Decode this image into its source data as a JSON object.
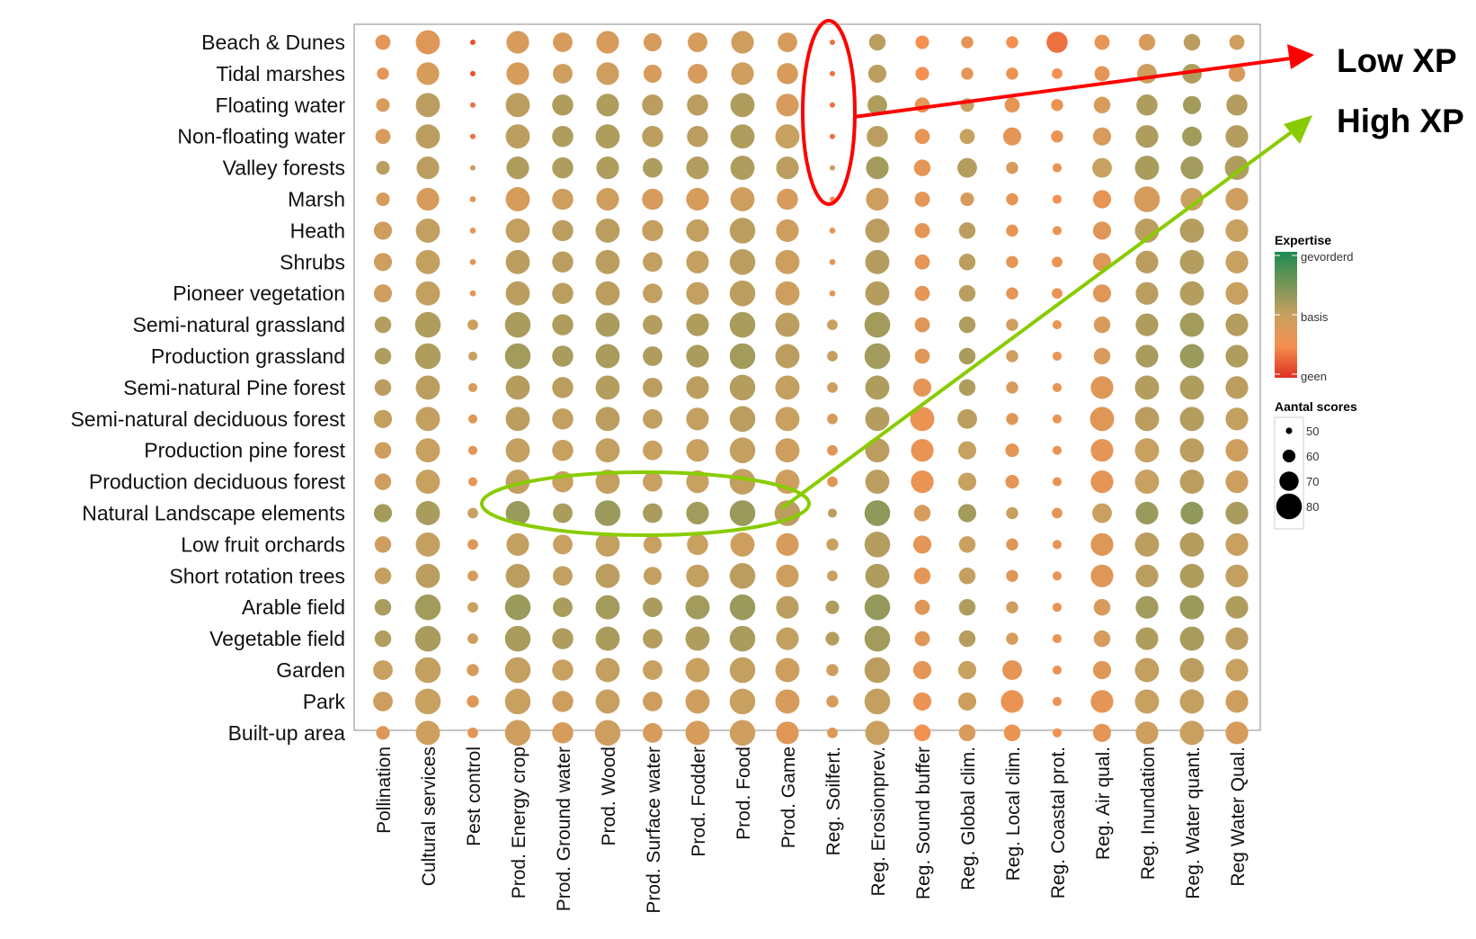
{
  "chart_data": {
    "type": "scatter",
    "title": "",
    "xlabel": "",
    "ylabel": "",
    "rows": [
      "Beach & Dunes",
      "Tidal marshes",
      "Floating water",
      "Non-floating water",
      "Valley forests",
      "Marsh",
      "Heath",
      "Shrubs",
      "Pioneer vegetation",
      "Semi-natural grassland",
      "Production grassland",
      "Semi-natural Pine forest",
      "Semi-natural deciduous forest",
      "Production pine forest",
      "Production deciduous forest",
      "Natural Landscape elements",
      "Low fruit orchards",
      "Short rotation trees",
      "Arable field",
      "Vegetable field",
      "Garden",
      "Park",
      "Built-up area"
    ],
    "columns": [
      "Pollination",
      "Cultural services",
      "Pest control",
      "Prod. Energy crop",
      "Prod. Ground water",
      "Prod. Wood",
      "Prod. Surface water",
      "Prod. Fodder",
      "Prod. Food",
      "Prod. Game",
      "Reg. Soilfert.",
      "Reg. Erosionprev.",
      "Reg. Sound buffer",
      "Reg. Global clim.",
      "Reg. Local clim.",
      "Reg. Coastal prot.",
      "Reg. Air qual.",
      "Reg. Inundation",
      "Reg. Water quant.",
      "Reg Water Qual."
    ],
    "size": [
      [
        60,
        72,
        44,
        70,
        66,
        70,
        64,
        66,
        70,
        66,
        44,
        62,
        58,
        56,
        56,
        68,
        60,
        62,
        62,
        60
      ],
      [
        56,
        70,
        44,
        70,
        66,
        70,
        64,
        66,
        70,
        68,
        44,
        64,
        58,
        56,
        56,
        54,
        60,
        66,
        66,
        62
      ],
      [
        58,
        72,
        44,
        72,
        68,
        70,
        68,
        68,
        72,
        70,
        44,
        66,
        60,
        58,
        60,
        56,
        62,
        68,
        64,
        68
      ],
      [
        60,
        72,
        44,
        72,
        68,
        72,
        68,
        68,
        72,
        72,
        44,
        68,
        60,
        60,
        64,
        56,
        64,
        70,
        66,
        70
      ],
      [
        58,
        70,
        46,
        70,
        68,
        70,
        66,
        70,
        72,
        70,
        46,
        70,
        62,
        66,
        56,
        52,
        66,
        72,
        70,
        72
      ],
      [
        58,
        70,
        48,
        72,
        68,
        70,
        68,
        70,
        72,
        68,
        46,
        70,
        60,
        58,
        56,
        52,
        64,
        74,
        70,
        70
      ],
      [
        64,
        72,
        48,
        72,
        68,
        72,
        68,
        70,
        74,
        70,
        48,
        72,
        60,
        62,
        56,
        52,
        64,
        72,
        72,
        70
      ],
      [
        64,
        72,
        48,
        72,
        68,
        72,
        66,
        70,
        74,
        72,
        48,
        72,
        60,
        62,
        56,
        54,
        64,
        70,
        72,
        70
      ],
      [
        64,
        72,
        48,
        72,
        68,
        72,
        66,
        70,
        74,
        72,
        48,
        72,
        60,
        62,
        56,
        54,
        64,
        70,
        72,
        70
      ],
      [
        62,
        74,
        54,
        74,
        68,
        72,
        66,
        70,
        74,
        72,
        54,
        74,
        60,
        62,
        56,
        52,
        62,
        70,
        72,
        70
      ],
      [
        62,
        74,
        52,
        74,
        68,
        72,
        66,
        70,
        74,
        72,
        54,
        74,
        60,
        62,
        56,
        52,
        62,
        70,
        72,
        70
      ],
      [
        62,
        72,
        52,
        72,
        68,
        72,
        66,
        70,
        74,
        72,
        54,
        72,
        64,
        62,
        56,
        52,
        70,
        72,
        72,
        70
      ],
      [
        64,
        72,
        52,
        72,
        68,
        72,
        66,
        70,
        74,
        72,
        54,
        72,
        72,
        66,
        56,
        52,
        72,
        72,
        72,
        70
      ],
      [
        62,
        72,
        52,
        72,
        68,
        72,
        66,
        70,
        74,
        72,
        54,
        72,
        70,
        64,
        58,
        52,
        70,
        72,
        72,
        70
      ],
      [
        62,
        72,
        52,
        72,
        68,
        72,
        66,
        70,
        74,
        72,
        54,
        72,
        70,
        64,
        58,
        52,
        70,
        72,
        72,
        70
      ],
      [
        64,
        72,
        54,
        72,
        66,
        74,
        66,
        70,
        74,
        74,
        52,
        74,
        62,
        64,
        56,
        54,
        66,
        70,
        70,
        70
      ],
      [
        62,
        72,
        54,
        70,
        66,
        72,
        64,
        68,
        72,
        70,
        56,
        74,
        64,
        62,
        56,
        52,
        70,
        72,
        72,
        70
      ],
      [
        62,
        72,
        54,
        72,
        66,
        72,
        64,
        70,
        74,
        70,
        54,
        72,
        62,
        62,
        56,
        52,
        70,
        70,
        72,
        70
      ],
      [
        62,
        74,
        54,
        74,
        66,
        72,
        66,
        72,
        74,
        70,
        58,
        74,
        60,
        62,
        56,
        52,
        62,
        70,
        72,
        70
      ],
      [
        62,
        74,
        54,
        74,
        68,
        72,
        66,
        72,
        74,
        70,
        58,
        74,
        60,
        62,
        56,
        52,
        62,
        70,
        72,
        70
      ],
      [
        66,
        74,
        56,
        74,
        68,
        72,
        66,
        72,
        74,
        72,
        56,
        74,
        64,
        64,
        66,
        52,
        64,
        72,
        72,
        70
      ],
      [
        66,
        74,
        56,
        74,
        68,
        72,
        66,
        72,
        74,
        72,
        56,
        74,
        64,
        64,
        70,
        52,
        70,
        72,
        72,
        70
      ],
      [
        58,
        72,
        54,
        74,
        68,
        74,
        66,
        72,
        74,
        70,
        54,
        72,
        62,
        62,
        62,
        52,
        64,
        70,
        72,
        70
      ]
    ],
    "expertise": [
      [
        0.4,
        0.42,
        0.25,
        0.45,
        0.45,
        0.45,
        0.45,
        0.45,
        0.48,
        0.45,
        0.3,
        0.55,
        0.35,
        0.4,
        0.35,
        0.3,
        0.4,
        0.45,
        0.55,
        0.48
      ],
      [
        0.4,
        0.45,
        0.25,
        0.45,
        0.48,
        0.48,
        0.45,
        0.45,
        0.48,
        0.45,
        0.3,
        0.55,
        0.35,
        0.4,
        0.38,
        0.35,
        0.4,
        0.48,
        0.6,
        0.45
      ],
      [
        0.45,
        0.55,
        0.3,
        0.55,
        0.6,
        0.6,
        0.55,
        0.55,
        0.6,
        0.45,
        0.3,
        0.6,
        0.4,
        0.5,
        0.4,
        0.38,
        0.45,
        0.6,
        0.65,
        0.58
      ],
      [
        0.45,
        0.55,
        0.3,
        0.55,
        0.6,
        0.6,
        0.55,
        0.55,
        0.6,
        0.5,
        0.3,
        0.55,
        0.4,
        0.5,
        0.4,
        0.38,
        0.45,
        0.6,
        0.65,
        0.58
      ],
      [
        0.55,
        0.55,
        0.45,
        0.6,
        0.6,
        0.6,
        0.6,
        0.58,
        0.6,
        0.55,
        0.5,
        0.65,
        0.4,
        0.58,
        0.45,
        0.38,
        0.5,
        0.62,
        0.65,
        0.6
      ],
      [
        0.45,
        0.45,
        0.4,
        0.45,
        0.48,
        0.48,
        0.45,
        0.45,
        0.48,
        0.45,
        0.35,
        0.48,
        0.4,
        0.45,
        0.4,
        0.35,
        0.4,
        0.45,
        0.5,
        0.48
      ],
      [
        0.48,
        0.52,
        0.4,
        0.52,
        0.55,
        0.55,
        0.52,
        0.52,
        0.55,
        0.48,
        0.4,
        0.55,
        0.4,
        0.55,
        0.4,
        0.38,
        0.42,
        0.55,
        0.58,
        0.5
      ],
      [
        0.48,
        0.52,
        0.4,
        0.55,
        0.55,
        0.55,
        0.52,
        0.52,
        0.55,
        0.48,
        0.4,
        0.58,
        0.4,
        0.55,
        0.4,
        0.38,
        0.42,
        0.55,
        0.58,
        0.5
      ],
      [
        0.48,
        0.52,
        0.4,
        0.55,
        0.55,
        0.55,
        0.52,
        0.52,
        0.55,
        0.48,
        0.4,
        0.58,
        0.4,
        0.55,
        0.4,
        0.38,
        0.42,
        0.55,
        0.58,
        0.5
      ],
      [
        0.58,
        0.6,
        0.48,
        0.62,
        0.6,
        0.62,
        0.58,
        0.6,
        0.62,
        0.55,
        0.5,
        0.65,
        0.42,
        0.6,
        0.48,
        0.38,
        0.45,
        0.6,
        0.65,
        0.58
      ],
      [
        0.6,
        0.6,
        0.5,
        0.65,
        0.62,
        0.62,
        0.6,
        0.62,
        0.65,
        0.55,
        0.52,
        0.65,
        0.42,
        0.62,
        0.48,
        0.38,
        0.45,
        0.62,
        0.68,
        0.6
      ],
      [
        0.55,
        0.55,
        0.45,
        0.58,
        0.55,
        0.58,
        0.55,
        0.55,
        0.58,
        0.52,
        0.48,
        0.6,
        0.4,
        0.6,
        0.45,
        0.38,
        0.42,
        0.58,
        0.6,
        0.55
      ],
      [
        0.52,
        0.52,
        0.42,
        0.55,
        0.52,
        0.55,
        0.52,
        0.52,
        0.55,
        0.5,
        0.45,
        0.58,
        0.38,
        0.55,
        0.42,
        0.38,
        0.42,
        0.55,
        0.58,
        0.52
      ],
      [
        0.48,
        0.5,
        0.4,
        0.52,
        0.5,
        0.52,
        0.5,
        0.5,
        0.52,
        0.48,
        0.42,
        0.55,
        0.38,
        0.5,
        0.4,
        0.38,
        0.4,
        0.5,
        0.55,
        0.48
      ],
      [
        0.48,
        0.5,
        0.4,
        0.52,
        0.5,
        0.52,
        0.5,
        0.5,
        0.52,
        0.48,
        0.42,
        0.55,
        0.38,
        0.5,
        0.4,
        0.38,
        0.4,
        0.5,
        0.55,
        0.48
      ],
      [
        0.65,
        0.62,
        0.5,
        0.68,
        0.62,
        0.68,
        0.62,
        0.65,
        0.68,
        0.55,
        0.55,
        0.72,
        0.45,
        0.65,
        0.5,
        0.4,
        0.5,
        0.68,
        0.72,
        0.62
      ],
      [
        0.48,
        0.52,
        0.42,
        0.52,
        0.5,
        0.52,
        0.5,
        0.5,
        0.48,
        0.45,
        0.5,
        0.58,
        0.4,
        0.5,
        0.42,
        0.38,
        0.42,
        0.55,
        0.58,
        0.5
      ],
      [
        0.52,
        0.55,
        0.45,
        0.55,
        0.52,
        0.55,
        0.52,
        0.52,
        0.55,
        0.48,
        0.5,
        0.6,
        0.4,
        0.52,
        0.42,
        0.38,
        0.42,
        0.55,
        0.6,
        0.52
      ],
      [
        0.62,
        0.65,
        0.5,
        0.68,
        0.62,
        0.65,
        0.62,
        0.65,
        0.68,
        0.55,
        0.6,
        0.7,
        0.42,
        0.6,
        0.48,
        0.38,
        0.45,
        0.65,
        0.68,
        0.6
      ],
      [
        0.58,
        0.62,
        0.48,
        0.62,
        0.6,
        0.62,
        0.58,
        0.6,
        0.62,
        0.52,
        0.58,
        0.65,
        0.42,
        0.58,
        0.45,
        0.38,
        0.45,
        0.6,
        0.62,
        0.55
      ],
      [
        0.5,
        0.52,
        0.45,
        0.52,
        0.5,
        0.52,
        0.5,
        0.5,
        0.52,
        0.48,
        0.48,
        0.55,
        0.4,
        0.5,
        0.4,
        0.38,
        0.42,
        0.52,
        0.55,
        0.5
      ],
      [
        0.48,
        0.5,
        0.42,
        0.5,
        0.48,
        0.5,
        0.48,
        0.48,
        0.5,
        0.45,
        0.45,
        0.52,
        0.38,
        0.48,
        0.38,
        0.38,
        0.4,
        0.5,
        0.52,
        0.48
      ],
      [
        0.42,
        0.48,
        0.4,
        0.48,
        0.45,
        0.48,
        0.45,
        0.45,
        0.48,
        0.42,
        0.42,
        0.5,
        0.35,
        0.45,
        0.38,
        0.35,
        0.4,
        0.48,
        0.5,
        0.45
      ]
    ],
    "grid": false,
    "legend": {
      "position": "right",
      "color_title": "Expertise",
      "color_labels": [
        "gevorderd",
        "basis",
        "geen"
      ],
      "size_title": "Aantal scores",
      "size_labels": [
        "50",
        "60",
        "70",
        "80"
      ],
      "size_values": [
        50,
        60,
        70,
        80
      ],
      "colors": {
        "high": "#1e8a50",
        "mid": "#c8a060",
        "low": "#e03020"
      }
    },
    "annotations": [
      {
        "label": "Low XP",
        "color": "#ff0000"
      },
      {
        "label": "High XP",
        "color": "#88cc00"
      }
    ]
  }
}
